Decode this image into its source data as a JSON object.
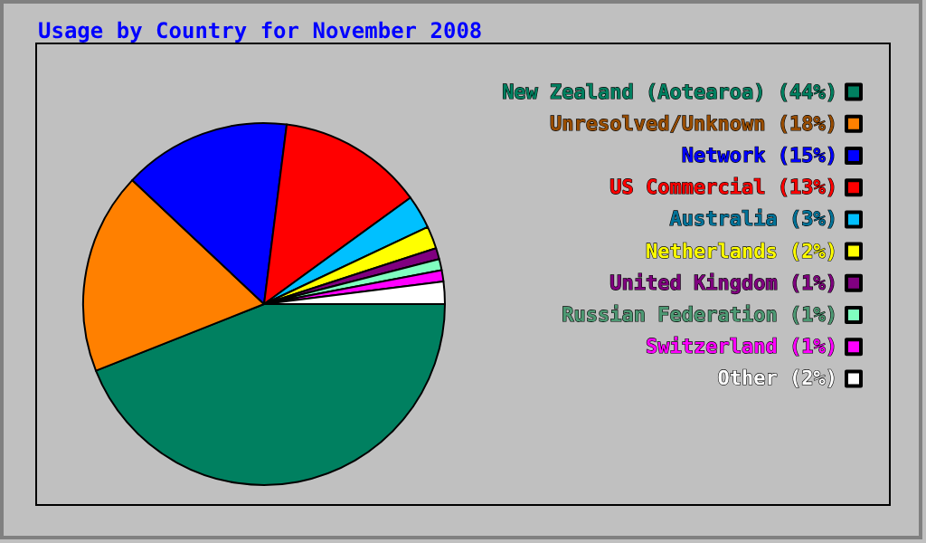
{
  "chart_data": {
    "type": "pie",
    "title": "Usage by Country for November 2008",
    "categories": [
      "New Zealand (Aotearoa) (44%)",
      "Unresolved/Unknown (18%)",
      "Network (15%)",
      "US Commercial (13%)",
      "Australia (3%)",
      "Netherlands (2%)",
      "United Kingdom (1%)",
      "Russian Federation (1%)",
      "Switzerland (1%)",
      "Other (2%)"
    ],
    "values": [
      44,
      18,
      15,
      13,
      3,
      2,
      1,
      1,
      1,
      2
    ],
    "colors": [
      "#008060",
      "#ff8000",
      "#0000ff",
      "#ff0000",
      "#00c0ff",
      "#ffff00",
      "#800080",
      "#80ffc0",
      "#ff00ff",
      "#ffffff"
    ],
    "legend": "right"
  }
}
